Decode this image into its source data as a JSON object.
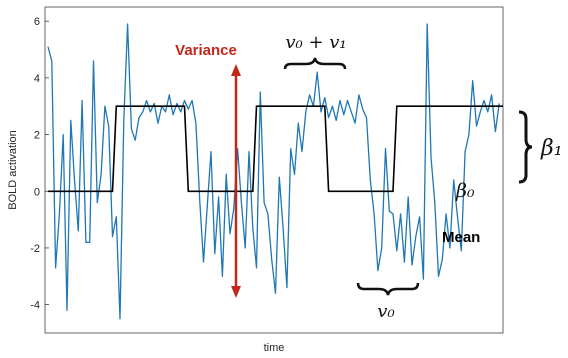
{
  "chart_data": {
    "type": "line",
    "xlabel": "time",
    "ylabel": "BOLD activation",
    "ylim": [
      -5,
      6.5
    ],
    "xlim": [
      0,
      120
    ],
    "yticks": [
      6,
      4,
      2,
      0,
      -2,
      -4
    ],
    "ytick_labels": [
      "6",
      "4",
      "2",
      "0",
      "-2",
      "-4"
    ],
    "grid": false,
    "series": [
      {
        "role": "noisy-signal",
        "color": "#1f77b4",
        "x": [
          0,
          1,
          2,
          3,
          4,
          5,
          6,
          7,
          8,
          9,
          10,
          11,
          12,
          13,
          14,
          15,
          16,
          17,
          18,
          19,
          20,
          21,
          22,
          23,
          24,
          25,
          26,
          27,
          28,
          29,
          30,
          31,
          32,
          33,
          34,
          35,
          36,
          37,
          38,
          39,
          40,
          41,
          42,
          43,
          44,
          45,
          46,
          47,
          48,
          49,
          50,
          51,
          52,
          53,
          54,
          55,
          56,
          57,
          58,
          59,
          60,
          61,
          62,
          63,
          64,
          65,
          66,
          67,
          68,
          69,
          70,
          71,
          72,
          73,
          74,
          75,
          76,
          77,
          78,
          79,
          80,
          81,
          82,
          83,
          84,
          85,
          86,
          87,
          88,
          89,
          90,
          91,
          92,
          93,
          94,
          95,
          96,
          97,
          98,
          99,
          100,
          101,
          102,
          103,
          104,
          105,
          106,
          107,
          108,
          109,
          110,
          111,
          112,
          113,
          114,
          115,
          116,
          117,
          118,
          119
        ],
        "y": [
          5.1,
          4.6,
          -2.7,
          -0.8,
          2.0,
          -4.2,
          2.5,
          0.4,
          -1.4,
          3.2,
          -1.8,
          -1.8,
          4.6,
          -0.4,
          0.6,
          3.0,
          2.3,
          -1.6,
          -0.9,
          -4.5,
          2.5,
          5.9,
          2.2,
          1.8,
          2.6,
          2.8,
          3.2,
          2.8,
          3.1,
          2.4,
          3.0,
          2.8,
          3.4,
          2.7,
          3.1,
          2.8,
          3.2,
          2.9,
          3.2,
          2.4,
          -0.3,
          -2.5,
          -0.5,
          1.4,
          -2.2,
          -0.2,
          -3.0,
          0.6,
          -1.5,
          -0.6,
          1.5,
          -0.4,
          -2.0,
          1.4,
          -1.3,
          -2.7,
          3.5,
          -0.4,
          -0.8,
          -2.4,
          -3.6,
          0.5,
          -1.3,
          -3.4,
          1.5,
          0.6,
          2.4,
          1.4,
          2.8,
          3.4,
          3.0,
          4.2,
          2.8,
          3.3,
          2.6,
          3.0,
          2.5,
          3.2,
          2.7,
          3.2,
          2.8,
          2.4,
          3.4,
          2.9,
          2.6,
          0.4,
          -0.8,
          -2.8,
          -2.0,
          1.5,
          -0.7,
          -0.8,
          -2.1,
          -0.8,
          -2.5,
          -0.2,
          -2.6,
          -1.6,
          -0.9,
          -3.1,
          5.9,
          1.2,
          -0.4,
          -3.0,
          -2.4,
          -0.8,
          -2.0,
          0.4,
          -0.9,
          -2.1,
          1.4,
          2.0,
          3.9,
          2.3,
          2.8,
          3.2,
          2.8,
          3.4,
          2.1,
          3.1
        ]
      },
      {
        "role": "true-signal",
        "color": "#000000",
        "step_x": [
          0,
          17,
          18,
          36,
          37,
          54,
          55,
          73,
          74,
          91,
          92,
          120
        ],
        "step_y": [
          0,
          0,
          3,
          3,
          0,
          0,
          3,
          3,
          0,
          0,
          3,
          3
        ]
      }
    ],
    "annotations": {
      "variance_label": "Variance",
      "variance_color": "#c2271a",
      "v0_plus_v1": "v₀ + v₁",
      "v0": "v₀",
      "beta0": "β₀",
      "beta1": "β₁",
      "mean_label": "Mean"
    }
  }
}
